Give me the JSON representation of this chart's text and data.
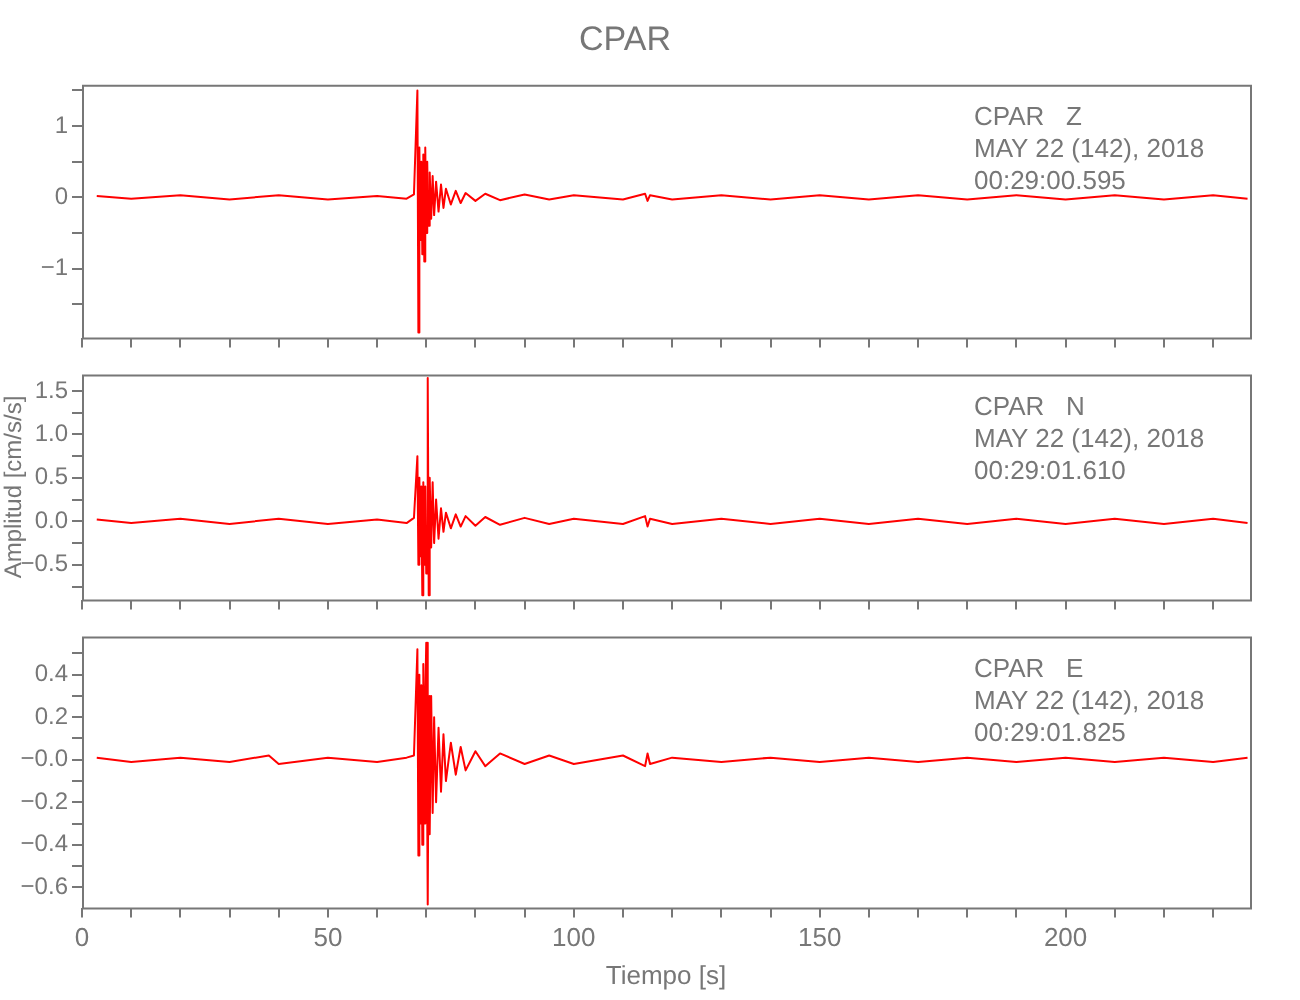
{
  "chart_data": [
    {
      "type": "line",
      "title": "CPAR",
      "annotations": [
        "CPAR   Z",
        "MAY 22 (142), 2018",
        "00:29:00.595"
      ],
      "x": [
        3,
        10,
        20,
        30,
        40,
        50,
        60,
        66,
        67.5,
        68.2,
        68.4,
        68.6,
        68.8,
        69,
        69.2,
        69.4,
        69.6,
        69.8,
        70,
        70.2,
        70.4,
        70.7,
        71,
        71.3,
        71.6,
        72,
        72.5,
        73,
        73.5,
        74,
        75,
        76,
        77,
        78,
        80,
        82,
        85,
        90,
        95,
        100,
        110,
        114.5,
        115,
        115.5,
        120,
        130,
        140,
        150,
        160,
        170,
        180,
        190,
        200,
        210,
        220,
        230,
        237
      ],
      "series": [
        {
          "color": "#ff0000",
          "values": [
            0.02,
            -0.02,
            0.03,
            -0.03,
            0.03,
            -0.03,
            0.02,
            -0.02,
            0.04,
            1.5,
            -1.9,
            0.7,
            -0.6,
            0.5,
            -0.8,
            0.6,
            -0.9,
            0.7,
            -0.5,
            0.5,
            -0.4,
            0.35,
            -0.3,
            0.3,
            -0.25,
            0.22,
            -0.2,
            0.18,
            -0.15,
            0.12,
            -0.1,
            0.09,
            -0.08,
            0.06,
            -0.05,
            0.05,
            -0.04,
            0.04,
            -0.03,
            0.03,
            -0.03,
            0.05,
            -0.05,
            0.03,
            -0.03,
            0.03,
            -0.03,
            0.03,
            -0.03,
            0.03,
            -0.03,
            0.03,
            -0.03,
            0.03,
            -0.03,
            0.03,
            -0.02
          ]
        }
      ],
      "xlim": [
        0,
        237.5
      ],
      "xticks": [
        {
          "value": 0,
          "label": null
        },
        {
          "value": 10,
          "label": null
        },
        {
          "value": 20,
          "label": null
        },
        {
          "value": 30,
          "label": null
        },
        {
          "value": 40,
          "label": null
        },
        {
          "value": 50,
          "label": null
        },
        {
          "value": 60,
          "label": null
        },
        {
          "value": 70,
          "label": null
        },
        {
          "value": 80,
          "label": null
        },
        {
          "value": 90,
          "label": null
        },
        {
          "value": 100,
          "label": null
        },
        {
          "value": 110,
          "label": null
        },
        {
          "value": 120,
          "label": null
        },
        {
          "value": 130,
          "label": null
        },
        {
          "value": 140,
          "label": null
        },
        {
          "value": 150,
          "label": null
        },
        {
          "value": 160,
          "label": null
        },
        {
          "value": 170,
          "label": null
        },
        {
          "value": 180,
          "label": null
        },
        {
          "value": 190,
          "label": null
        },
        {
          "value": 200,
          "label": null
        },
        {
          "value": 210,
          "label": null
        },
        {
          "value": 220,
          "label": null
        },
        {
          "value": 230,
          "label": null
        }
      ],
      "ylim": [
        -1.97,
        1.58
      ],
      "yticks": [
        {
          "value": -1.5,
          "label": null
        },
        {
          "value": -1,
          "label": "−1"
        },
        {
          "value": -0.5,
          "label": null
        },
        0,
        {
          "value": 0.5,
          "label": null
        },
        1,
        {
          "value": 1.5,
          "label": null
        }
      ],
      "tick_labels": "y"
    },
    {
      "type": "line",
      "ylabel": "Amplitud [cm/s/s]",
      "annotations": [
        "CPAR   N",
        "MAY 22 (142), 2018",
        "00:29:01.610"
      ],
      "x": [
        3,
        10,
        20,
        30,
        40,
        50,
        60,
        66,
        67.5,
        68.2,
        68.4,
        68.6,
        68.8,
        69,
        69.2,
        69.4,
        69.6,
        69.8,
        70,
        70.3,
        70.5,
        70.7,
        71,
        71.3,
        71.6,
        72,
        72.5,
        73,
        73.5,
        74,
        75,
        76,
        77,
        78,
        80,
        82,
        85,
        90,
        95,
        100,
        110,
        114.5,
        115,
        115.5,
        120,
        130,
        140,
        150,
        160,
        170,
        180,
        190,
        200,
        210,
        220,
        230,
        237
      ],
      "series": [
        {
          "color": "#ff0000",
          "values": [
            0.02,
            -0.02,
            0.03,
            -0.03,
            0.03,
            -0.03,
            0.02,
            -0.02,
            0.04,
            0.75,
            -0.5,
            0.5,
            -0.4,
            0.4,
            -0.85,
            0.45,
            -0.5,
            0.4,
            -0.6,
            1.65,
            -0.85,
            0.5,
            -0.3,
            0.45,
            -0.25,
            0.25,
            -0.2,
            0.15,
            -0.12,
            0.1,
            -0.08,
            0.08,
            -0.06,
            0.06,
            -0.05,
            0.05,
            -0.04,
            0.04,
            -0.03,
            0.03,
            -0.03,
            0.06,
            -0.06,
            0.03,
            -0.03,
            0.03,
            -0.03,
            0.03,
            -0.03,
            0.03,
            -0.03,
            0.03,
            -0.03,
            0.03,
            -0.03,
            0.03,
            -0.02
          ]
        }
      ],
      "xlim": [
        0,
        237.5
      ],
      "xticks": [
        {
          "value": 0,
          "label": null
        },
        {
          "value": 10,
          "label": null
        },
        {
          "value": 20,
          "label": null
        },
        {
          "value": 30,
          "label": null
        },
        {
          "value": 40,
          "label": null
        },
        {
          "value": 50,
          "label": null
        },
        {
          "value": 60,
          "label": null
        },
        {
          "value": 70,
          "label": null
        },
        {
          "value": 80,
          "label": null
        },
        {
          "value": 90,
          "label": null
        },
        {
          "value": 100,
          "label": null
        },
        {
          "value": 110,
          "label": null
        },
        {
          "value": 120,
          "label": null
        },
        {
          "value": 130,
          "label": null
        },
        {
          "value": 140,
          "label": null
        },
        {
          "value": 150,
          "label": null
        },
        {
          "value": 160,
          "label": null
        },
        {
          "value": 170,
          "label": null
        },
        {
          "value": 180,
          "label": null
        },
        {
          "value": 190,
          "label": null
        },
        {
          "value": 200,
          "label": null
        },
        {
          "value": 210,
          "label": null
        },
        {
          "value": 220,
          "label": null
        },
        {
          "value": 230,
          "label": null
        }
      ],
      "ylim": [
        -0.9,
        1.69
      ],
      "yticks": [
        {
          "value": -0.75,
          "label": null
        },
        {
          "value": -0.5,
          "label": "−0.5"
        },
        {
          "value": -0.25,
          "label": null
        },
        {
          "value": 0,
          "label": "0.0"
        },
        {
          "value": 0.25,
          "label": null
        },
        0.5,
        {
          "value": 0.75,
          "label": null
        },
        {
          "value": 1,
          "label": "1.0"
        },
        {
          "value": 1.25,
          "label": null
        },
        1.5
      ],
      "tick_labels": "y"
    },
    {
      "type": "line",
      "xlabel": "Tiempo [s]",
      "annotations": [
        "CPAR   E",
        "MAY 22 (142), 2018",
        "00:29:01.825"
      ],
      "x": [
        3,
        10,
        20,
        30,
        38,
        40,
        50,
        60,
        66,
        67.5,
        68.2,
        68.4,
        68.6,
        68.8,
        69,
        69.2,
        69.4,
        69.6,
        69.8,
        70,
        70.3,
        70.5,
        70.7,
        71,
        71.3,
        71.6,
        72,
        72.5,
        73,
        73.5,
        74,
        75,
        76,
        77,
        78,
        80,
        82,
        85,
        90,
        95,
        100,
        110,
        114.5,
        115,
        115.5,
        120,
        130,
        140,
        150,
        160,
        170,
        180,
        190,
        200,
        210,
        220,
        230,
        237
      ],
      "series": [
        {
          "color": "#ff0000",
          "values": [
            0.01,
            -0.01,
            0.01,
            -0.01,
            0.02,
            -0.02,
            0.01,
            -0.01,
            0.01,
            0.02,
            0.52,
            -0.45,
            0.4,
            -0.3,
            0.35,
            -0.4,
            0.45,
            -0.3,
            0.3,
            0.55,
            -0.68,
            0.3,
            -0.35,
            0.3,
            -0.25,
            0.2,
            -0.2,
            0.15,
            -0.15,
            0.12,
            -0.1,
            0.08,
            -0.07,
            0.06,
            -0.05,
            0.04,
            -0.03,
            0.03,
            -0.02,
            0.02,
            -0.02,
            0.02,
            -0.03,
            0.03,
            -0.02,
            0.01,
            -0.01,
            0.01,
            -0.01,
            0.01,
            -0.01,
            0.01,
            -0.01,
            0.01,
            -0.01,
            0.01,
            -0.01,
            0.01
          ]
        }
      ],
      "xlim": [
        0,
        237.5
      ],
      "xticks": [
        0,
        {
          "value": 10,
          "label": null
        },
        {
          "value": 20,
          "label": null
        },
        {
          "value": 30,
          "label": null
        },
        {
          "value": 40,
          "label": null
        },
        50,
        {
          "value": 60,
          "label": null
        },
        {
          "value": 70,
          "label": null
        },
        {
          "value": 80,
          "label": null
        },
        {
          "value": 90,
          "label": null
        },
        100,
        {
          "value": 110,
          "label": null
        },
        {
          "value": 120,
          "label": null
        },
        {
          "value": 130,
          "label": null
        },
        {
          "value": 140,
          "label": null
        },
        150,
        {
          "value": 160,
          "label": null
        },
        {
          "value": 170,
          "label": null
        },
        {
          "value": 180,
          "label": null
        },
        {
          "value": 190,
          "label": null
        },
        200,
        {
          "value": 210,
          "label": null
        },
        {
          "value": 220,
          "label": null
        },
        {
          "value": 230,
          "label": null
        }
      ],
      "ylim": [
        -0.695,
        0.58
      ],
      "yticks": [
        {
          "value": -0.6,
          "label": "−0.6"
        },
        {
          "value": -0.5,
          "label": null
        },
        {
          "value": -0.4,
          "label": "−0.4"
        },
        {
          "value": -0.3,
          "label": null
        },
        {
          "value": -0.2,
          "label": "−0.2"
        },
        {
          "value": -0.1,
          "label": null
        },
        {
          "value": 0,
          "label": "−0.0"
        },
        {
          "value": 0.1,
          "label": null
        },
        0.2,
        {
          "value": 0.3,
          "label": null
        },
        0.4,
        {
          "value": 0.5,
          "label": null
        }
      ]
    }
  ]
}
